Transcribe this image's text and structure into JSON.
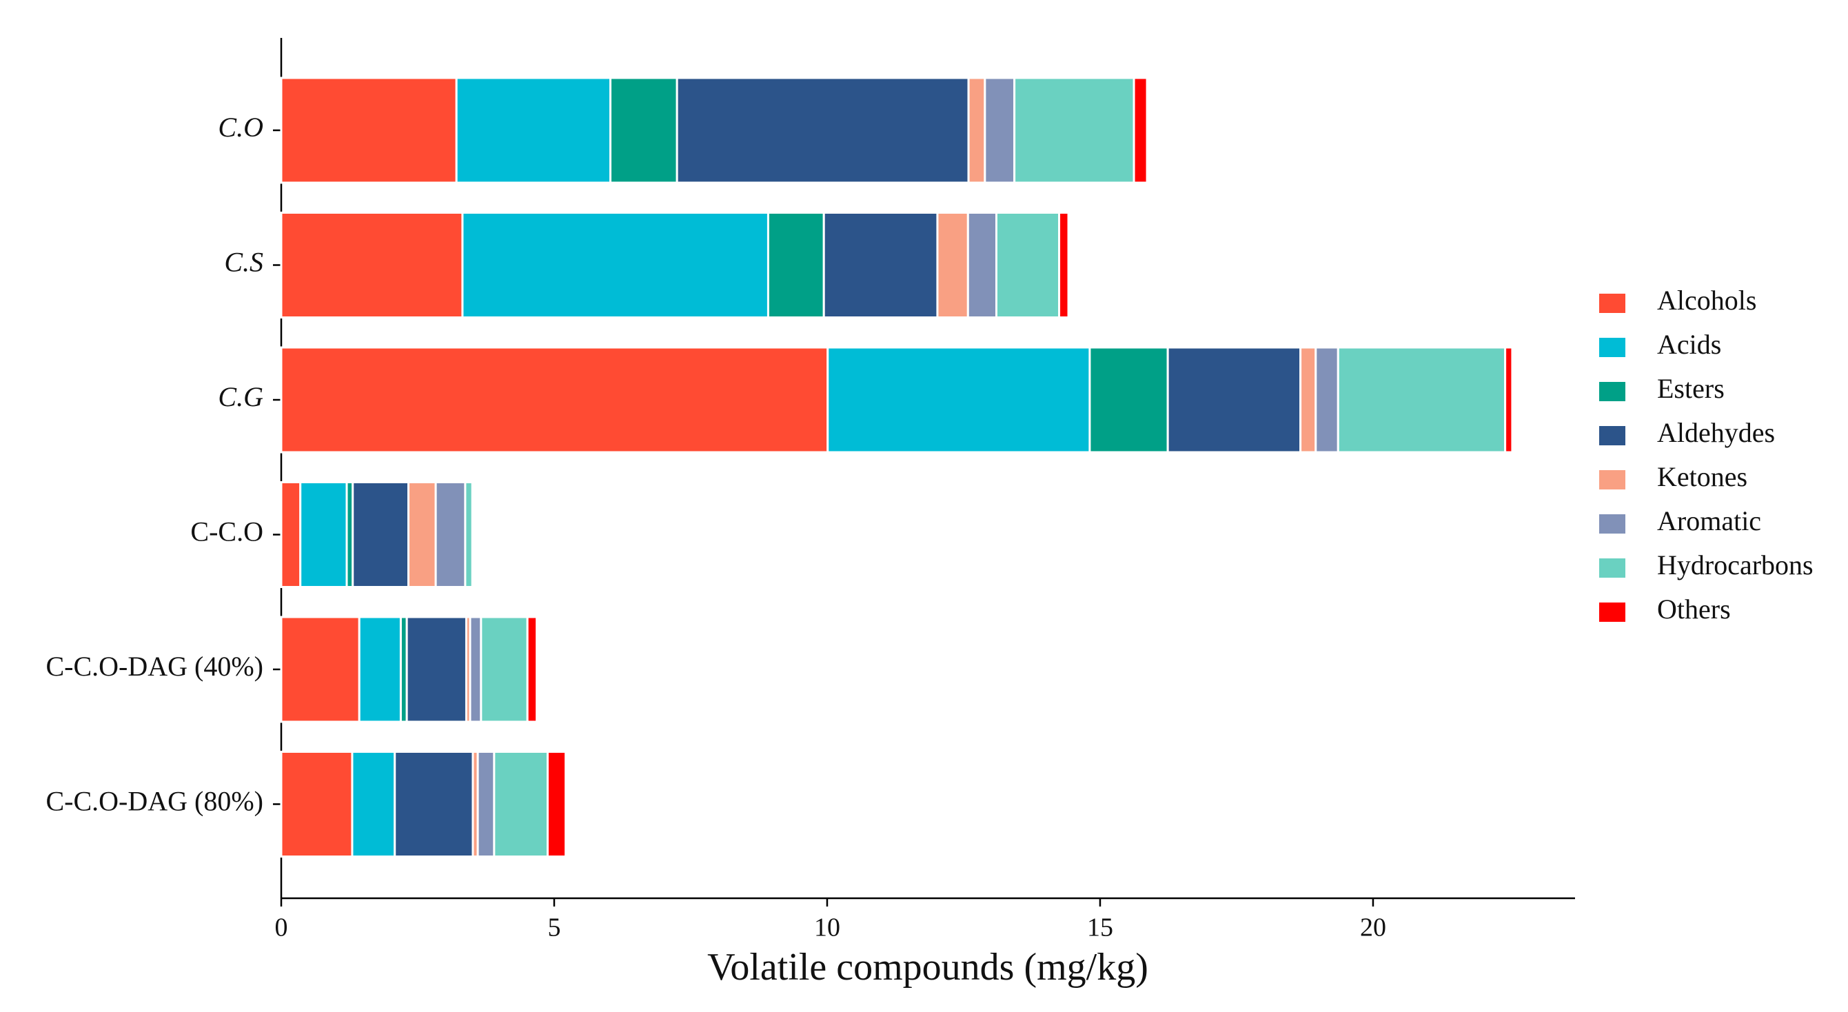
{
  "chart_data": {
    "type": "bar",
    "orientation": "horizontal",
    "stacked": true,
    "x_label": "Volatile compounds (mg/kg)",
    "categories": [
      "C.O",
      "C.S",
      "C.G",
      "C-C.O",
      "C-C.O-DAG (40%)",
      "C-C.O-DAG (80%)"
    ],
    "series": [
      {
        "name": "Alcohols",
        "color": "#ff4b33",
        "values": [
          3.21,
          3.32,
          10.01,
          0.35,
          1.43,
          1.3
        ]
      },
      {
        "name": "Acids",
        "color": "#00bcd6",
        "values": [
          2.82,
          5.6,
          4.8,
          0.85,
          0.76,
          0.78
        ]
      },
      {
        "name": "Esters",
        "color": "#00a087",
        "values": [
          1.22,
          1.02,
          1.43,
          0.11,
          0.11,
          0
        ]
      },
      {
        "name": "Aldehydes",
        "color": "#2c548a",
        "values": [
          5.34,
          2.08,
          2.43,
          1.02,
          1.09,
          1.43
        ]
      },
      {
        "name": "Ketones",
        "color": "#f9a083",
        "values": [
          0.3,
          0.56,
          0.28,
          0.5,
          0.07,
          0.09
        ]
      },
      {
        "name": "Aromatic",
        "color": "#8191b8",
        "values": [
          0.54,
          0.52,
          0.41,
          0.54,
          0.2,
          0.3
        ]
      },
      {
        "name": "Hydrocarbons",
        "color": "#6ad1c1",
        "values": [
          2.19,
          1.15,
          3.06,
          0.13,
          0.85,
          0.98
        ]
      },
      {
        "name": "Others",
        "color": "#ff0000",
        "values": [
          0.24,
          0.17,
          0.13,
          0,
          0.17,
          0.33
        ]
      }
    ],
    "xlim": [
      0,
      23.7
    ],
    "xticks": [
      0,
      5,
      10,
      15,
      20
    ],
    "legend": "right"
  }
}
